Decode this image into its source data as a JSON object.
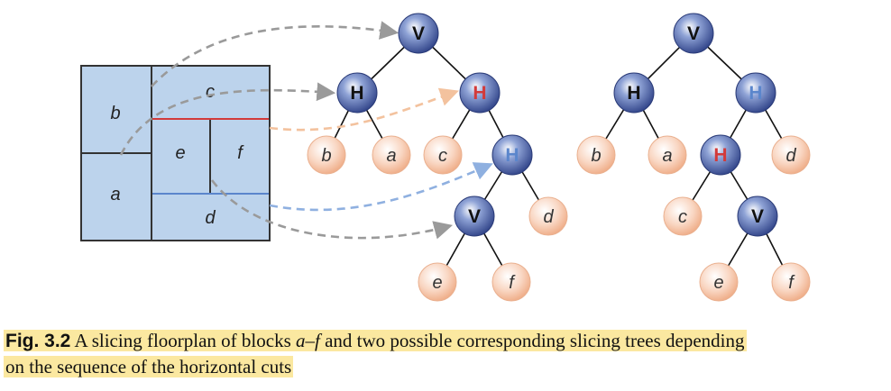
{
  "floorplan": {
    "blocks": [
      {
        "id": "b",
        "label": "b"
      },
      {
        "id": "a",
        "label": "a"
      },
      {
        "id": "c",
        "label": "c"
      },
      {
        "id": "e",
        "label": "e"
      },
      {
        "id": "f",
        "label": "f"
      },
      {
        "id": "d",
        "label": "d"
      }
    ]
  },
  "trees": [
    {
      "nodes": [
        {
          "id": "t1-root",
          "label": "V",
          "kind": "cut"
        },
        {
          "id": "t1-h1",
          "label": "H",
          "kind": "cut"
        },
        {
          "id": "t1-h2",
          "label": "H",
          "kind": "cut",
          "highlight": "red"
        },
        {
          "id": "t1-b",
          "label": "b",
          "kind": "leaf"
        },
        {
          "id": "t1-a",
          "label": "a",
          "kind": "leaf"
        },
        {
          "id": "t1-c",
          "label": "c",
          "kind": "leaf"
        },
        {
          "id": "t1-h3",
          "label": "H",
          "kind": "cut",
          "highlight": "blue"
        },
        {
          "id": "t1-v2",
          "label": "V",
          "kind": "cut"
        },
        {
          "id": "t1-d",
          "label": "d",
          "kind": "leaf"
        },
        {
          "id": "t1-e",
          "label": "e",
          "kind": "leaf"
        },
        {
          "id": "t1-f",
          "label": "f",
          "kind": "leaf"
        }
      ]
    },
    {
      "nodes": [
        {
          "id": "t2-root",
          "label": "V",
          "kind": "cut"
        },
        {
          "id": "t2-h1",
          "label": "H",
          "kind": "cut"
        },
        {
          "id": "t2-h2",
          "label": "H",
          "kind": "cut",
          "highlight": "blue"
        },
        {
          "id": "t2-b",
          "label": "b",
          "kind": "leaf"
        },
        {
          "id": "t2-a",
          "label": "a",
          "kind": "leaf"
        },
        {
          "id": "t2-h3",
          "label": "H",
          "kind": "cut",
          "highlight": "red"
        },
        {
          "id": "t2-d",
          "label": "d",
          "kind": "leaf"
        },
        {
          "id": "t2-c",
          "label": "c",
          "kind": "leaf"
        },
        {
          "id": "t2-v2",
          "label": "V",
          "kind": "cut"
        },
        {
          "id": "t2-e",
          "label": "e",
          "kind": "leaf"
        },
        {
          "id": "t2-f",
          "label": "f",
          "kind": "leaf"
        }
      ]
    }
  ],
  "caption": {
    "label": "Fig. 3.2",
    "text_before": "A slicing floorplan of blocks ",
    "range": "a–f",
    "text_line1_rest": " and two possible corresponding slicing trees depending",
    "text_line2": "on the sequence of the horizontal cuts"
  },
  "colors": {
    "block_fill": "#bcd3ec",
    "block_border": "#333333",
    "red_cut": "#d23a3a",
    "blue_cut": "#5b86cc",
    "cut_node": "#2f4a8f",
    "leaf_node": "#f4c2a6",
    "arrow_gray": "#9a9a9a",
    "arrow_orange": "#f3c29e",
    "arrow_blue": "#8fb0e0",
    "caption_highlight": "#fbe8a0"
  }
}
